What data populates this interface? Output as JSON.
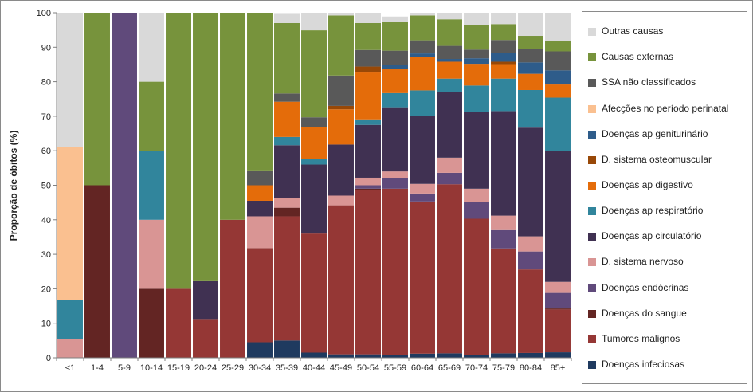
{
  "chart_data": {
    "type": "bar",
    "stacked": true,
    "title": "",
    "xlabel": "",
    "ylabel": "Proporção de óbitos (%)",
    "ylim": [
      0,
      100
    ],
    "yticks": [
      0,
      10,
      20,
      30,
      40,
      50,
      60,
      70,
      80,
      90,
      100
    ],
    "grid": false,
    "legend_position": "right",
    "categories": [
      "<1",
      "1-4",
      "5-9",
      "10-14",
      "15-19",
      "20-24",
      "25-29",
      "30-34",
      "35-39",
      "40-44",
      "45-49",
      "50-54",
      "55-59",
      "60-64",
      "65-69",
      "70-74",
      "75-79",
      "80-84",
      "85+"
    ],
    "series": [
      {
        "name": "Doenças infeciosas",
        "color": "#1f3a5f",
        "values": [
          0,
          0,
          0,
          0,
          0,
          0,
          0,
          4.5,
          5,
          1.5,
          1,
          1,
          0.7,
          1.2,
          1.3,
          0.8,
          1.3,
          1.4,
          1.6
        ]
      },
      {
        "name": "Tumores malignos",
        "color": "#953735",
        "values": [
          0,
          0,
          0,
          0,
          20,
          11,
          40,
          27.3,
          36,
          34.5,
          43.2,
          47.5,
          48.3,
          44.1,
          49,
          39.5,
          30.4,
          24.2,
          12.4
        ]
      },
      {
        "name": "Doenças do sangue",
        "color": "#632523",
        "values": [
          0,
          50,
          0,
          20,
          0,
          0,
          0,
          0,
          2.5,
          0,
          0,
          0.5,
          0,
          0,
          0,
          0,
          0,
          0,
          0.3
        ]
      },
      {
        "name": "Doenças endócrinas",
        "color": "#604a7b",
        "values": [
          0,
          0,
          100,
          0,
          0,
          0,
          0,
          0,
          0,
          0,
          0,
          1,
          3,
          2.3,
          3.3,
          4.9,
          5.3,
          5.2,
          4.5
        ]
      },
      {
        "name": "D. sistema nervoso",
        "color": "#d99594",
        "values": [
          5.5,
          0,
          0,
          20,
          0,
          0,
          0,
          9.2,
          2.8,
          0,
          2.8,
          2.2,
          2,
          2.8,
          4.4,
          3.8,
          4.2,
          4.4,
          3.2
        ]
      },
      {
        "name": "Doenças ap circulatório",
        "color": "#403152",
        "values": [
          0,
          0,
          0,
          0,
          0,
          11.2,
          0,
          4.5,
          15.3,
          20,
          14.8,
          15.3,
          18.6,
          19.6,
          19,
          22.2,
          30.3,
          31.5,
          38
        ]
      },
      {
        "name": "Doenças ap respiratório",
        "color": "#31859c",
        "values": [
          11.2,
          0,
          0,
          20,
          0,
          0,
          0,
          0,
          2.4,
          1.6,
          0,
          1.6,
          4.1,
          7.5,
          3.9,
          7.7,
          9.4,
          10.9,
          15.4
        ]
      },
      {
        "name": "Doenças ap digestivo",
        "color": "#e46c0a",
        "values": [
          0,
          0,
          0,
          0,
          0,
          0,
          0,
          4.5,
          10.2,
          9.2,
          10.2,
          13.8,
          6.9,
          9.7,
          4.9,
          6.3,
          4.2,
          4.7,
          3.8
        ]
      },
      {
        "name": "D. sistema osteomuscular",
        "color": "#984807",
        "values": [
          0,
          0,
          0,
          0,
          0,
          0,
          0,
          0,
          0,
          0,
          1,
          1.5,
          0,
          0,
          0,
          0,
          0.7,
          0,
          0
        ]
      },
      {
        "name": "Doenças ap geniturinário",
        "color": "#2e5c8a",
        "values": [
          0,
          0,
          0,
          0,
          0,
          0,
          0,
          0,
          0,
          0,
          0,
          0,
          1.2,
          1,
          0.8,
          1.6,
          2.5,
          3.3,
          4.1
        ]
      },
      {
        "name": "SSA não classificados",
        "color": "#595959",
        "values": [
          0,
          0,
          0,
          0,
          0,
          0,
          0,
          4.3,
          2.4,
          2.9,
          8.8,
          4.8,
          4.2,
          3.8,
          3.8,
          2.5,
          3.8,
          3.8,
          5.5
        ]
      },
      {
        "name": "Afecções no período perinatal",
        "color": "#fac090",
        "values": [
          44.3,
          0,
          0,
          0,
          0,
          0,
          0,
          0,
          0,
          0,
          0,
          0,
          0,
          0,
          0,
          0,
          0,
          0,
          0
        ]
      },
      {
        "name": "Causas externas",
        "color": "#77933c",
        "values": [
          0,
          50,
          0,
          20,
          80,
          77.8,
          60,
          45.7,
          20.4,
          25.2,
          17.4,
          7.8,
          8.4,
          7.2,
          7.7,
          7.2,
          4.6,
          3.9,
          3.1
        ]
      },
      {
        "name": "Outras causas",
        "color": "#d9d9d9",
        "values": [
          39,
          0,
          0,
          20,
          0,
          0,
          0,
          0,
          2.9,
          5.1,
          0.8,
          3,
          1.5,
          0.8,
          1.9,
          3.5,
          3.3,
          6.7,
          8.1
        ]
      }
    ],
    "legend_order": [
      "Outras causas",
      "Causas externas",
      "SSA não classificados",
      "Afecções no período perinatal",
      "Doenças ap geniturinário",
      "D. sistema osteomuscular",
      "Doenças ap digestivo",
      "Doenças ap respiratório",
      "Doenças ap circulatório",
      "D. sistema nervoso",
      "Doenças endócrinas",
      "Doenças do sangue",
      "Tumores malignos",
      "Doenças infeciosas"
    ]
  }
}
